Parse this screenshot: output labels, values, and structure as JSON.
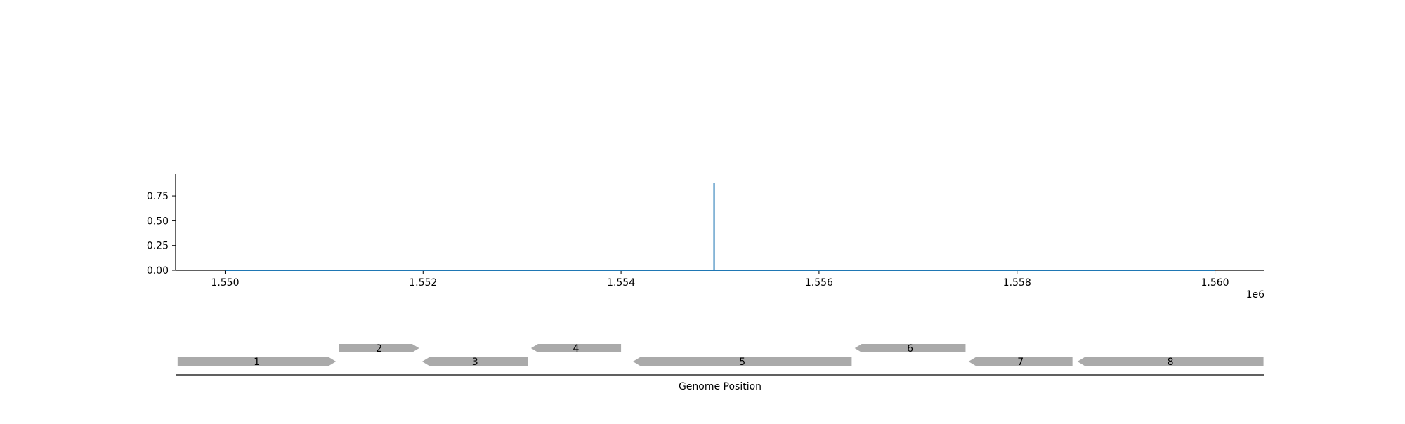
{
  "chart_data": [
    {
      "type": "line",
      "title": "",
      "xlabel": "",
      "ylabel": "",
      "x_offset_label": "1e6",
      "xlim": [
        1.5495,
        1.5605
      ],
      "ylim": [
        0,
        0.97
      ],
      "x_ticks": [
        1.55,
        1.552,
        1.554,
        1.556,
        1.558,
        1.56
      ],
      "x_tick_labels": [
        "1.550",
        "1.552",
        "1.554",
        "1.556",
        "1.558",
        "1.560"
      ],
      "y_ticks": [
        0.0,
        0.25,
        0.5,
        0.75
      ],
      "y_tick_labels": [
        "0.00",
        "0.25",
        "0.50",
        "0.75"
      ],
      "grid": false,
      "color": "#1f77b4",
      "series": [
        {
          "x": [
            1.55,
            1.55494,
            1.55494,
            1.55494,
            1.56
          ],
          "y": [
            0,
            0,
            0.88,
            0,
            0
          ]
        }
      ]
    },
    {
      "type": "gene-track",
      "xlabel": "Genome Position",
      "gene_color": "#aaaaaa",
      "genes": [
        {
          "label": "1",
          "start": 1.54952,
          "end": 1.55112,
          "strand": "+",
          "row": 0
        },
        {
          "label": "2",
          "start": 1.55115,
          "end": 1.55196,
          "strand": "+",
          "row": 1
        },
        {
          "label": "3",
          "start": 1.55199,
          "end": 1.55306,
          "strand": "-",
          "row": 0
        },
        {
          "label": "4",
          "start": 1.55309,
          "end": 1.554,
          "strand": "-",
          "row": 1
        },
        {
          "label": "5",
          "start": 1.55412,
          "end": 1.55633,
          "strand": "-",
          "row": 0
        },
        {
          "label": "6",
          "start": 1.55636,
          "end": 1.55748,
          "strand": "-",
          "row": 1
        },
        {
          "label": "7",
          "start": 1.55751,
          "end": 1.55856,
          "strand": "-",
          "row": 0
        },
        {
          "label": "8",
          "start": 1.55861,
          "end": 1.56049,
          "strand": "-",
          "row": 0
        }
      ]
    }
  ]
}
